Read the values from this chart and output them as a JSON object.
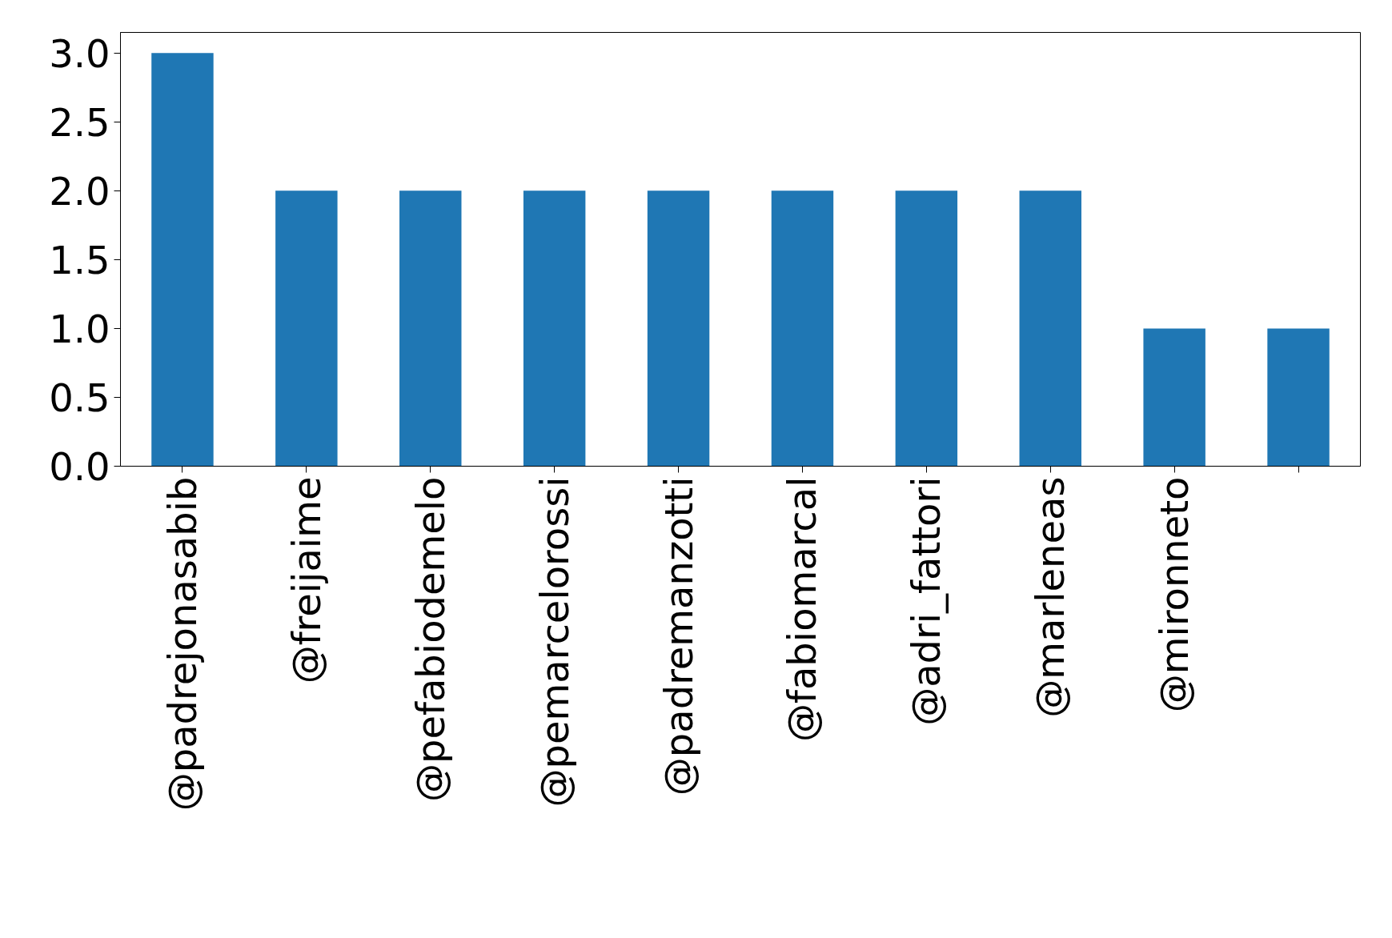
{
  "chart_data": {
    "type": "bar",
    "categories": [
      "@padrejonasabib",
      "@freijaime",
      "@pefabiodemelo",
      "@pemarcelorossi",
      "@padremanzotti",
      "@fabiomarcal",
      "@adri_fattori",
      "@marleneas",
      "@mironneto",
      null
    ],
    "values": [
      3,
      2,
      2,
      2,
      2,
      2,
      2,
      2,
      1,
      1
    ],
    "color": "#1f77b4",
    "ylim": [
      0,
      3.15
    ],
    "yticks": [
      {
        "value": 0,
        "label": "0.0"
      },
      {
        "value": 0.5,
        "label": "0.5"
      },
      {
        "value": 1,
        "label": "1.0"
      },
      {
        "value": 1.5,
        "label": "1.5"
      },
      {
        "value": 2,
        "label": "2.0"
      },
      {
        "value": 2.5,
        "label": "2.5"
      },
      {
        "value": 3,
        "label": "3.0"
      }
    ],
    "grid": false
  }
}
